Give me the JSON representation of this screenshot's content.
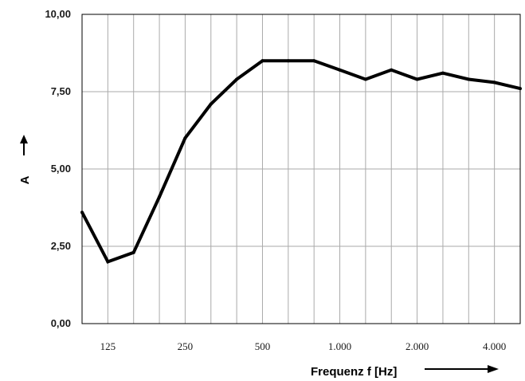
{
  "chart_data": {
    "type": "line",
    "xlabel": "Frequenz f [Hz]",
    "ylabel": "A",
    "ylim": [
      0,
      10
    ],
    "yticks": [
      "0,00",
      "2,50",
      "5,00",
      "7,50",
      "10,00"
    ],
    "yticks_values": [
      0,
      2.5,
      5,
      7.5,
      10
    ],
    "x": [
      100,
      125,
      160,
      200,
      250,
      315,
      400,
      500,
      630,
      800,
      1000,
      1250,
      1600,
      2000,
      2500,
      3150,
      4000,
      5000
    ],
    "xticks": [
      {
        "value": 125,
        "label": "125"
      },
      {
        "value": 250,
        "label": "250"
      },
      {
        "value": 500,
        "label": "500"
      },
      {
        "value": 1000,
        "label": "1.000"
      },
      {
        "value": 2000,
        "label": "2.000"
      },
      {
        "value": 4000,
        "label": "4.000"
      }
    ],
    "series": [
      {
        "values": [
          3.6,
          2.0,
          2.3,
          4.1,
          6.0,
          7.1,
          7.9,
          8.5,
          8.5,
          8.5,
          8.2,
          7.9,
          8.2,
          7.9,
          8.1,
          7.9,
          7.8,
          7.6
        ]
      }
    ],
    "grid": true,
    "line_color": "#000000",
    "grid_color": "#aaaaaa"
  }
}
